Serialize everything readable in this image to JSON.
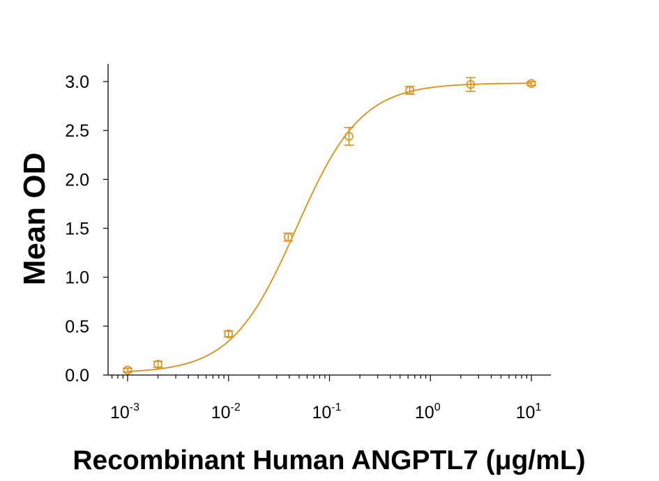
{
  "chart_data": {
    "type": "scatter",
    "title": "",
    "xlabel": "Recombinant Human ANGPTL7 (μg/mL)",
    "ylabel": "Mean OD",
    "x_scale": "log",
    "xlim": [
      0.0005,
      20
    ],
    "ylim": [
      0,
      3.15
    ],
    "grid": false,
    "color": "#E08E12",
    "y_ticks": [
      "0.0",
      "0.5",
      "1.0",
      "1.5",
      "2.0",
      "2.5",
      "3.0"
    ],
    "x_ticks": [
      {
        "base": "10",
        "exp": "-3",
        "value": 0.001
      },
      {
        "base": "10",
        "exp": "-2",
        "value": 0.01
      },
      {
        "base": "10",
        "exp": "-1",
        "value": 0.1
      },
      {
        "base": "10",
        "exp": "0",
        "value": 1
      },
      {
        "base": "10",
        "exp": "1",
        "value": 10
      }
    ],
    "series": [
      {
        "points": [
          {
            "x": 0.001,
            "y": 0.05,
            "err": 0.02
          },
          {
            "x": 0.002,
            "y": 0.11,
            "err": 0.03
          },
          {
            "x": 0.01,
            "y": 0.42,
            "err": 0.03
          },
          {
            "x": 0.039,
            "y": 1.41,
            "err": 0.04
          },
          {
            "x": 0.156,
            "y": 2.44,
            "err": 0.09
          },
          {
            "x": 0.625,
            "y": 2.91,
            "err": 0.04
          },
          {
            "x": 2.5,
            "y": 2.97,
            "err": 0.07
          },
          {
            "x": 10,
            "y": 2.98,
            "err": 0.02
          }
        ],
        "fit": {
          "model": "4PL",
          "bottom": 0.02,
          "top": 2.985,
          "ec50": 0.047,
          "hill": 1.35
        }
      }
    ]
  }
}
